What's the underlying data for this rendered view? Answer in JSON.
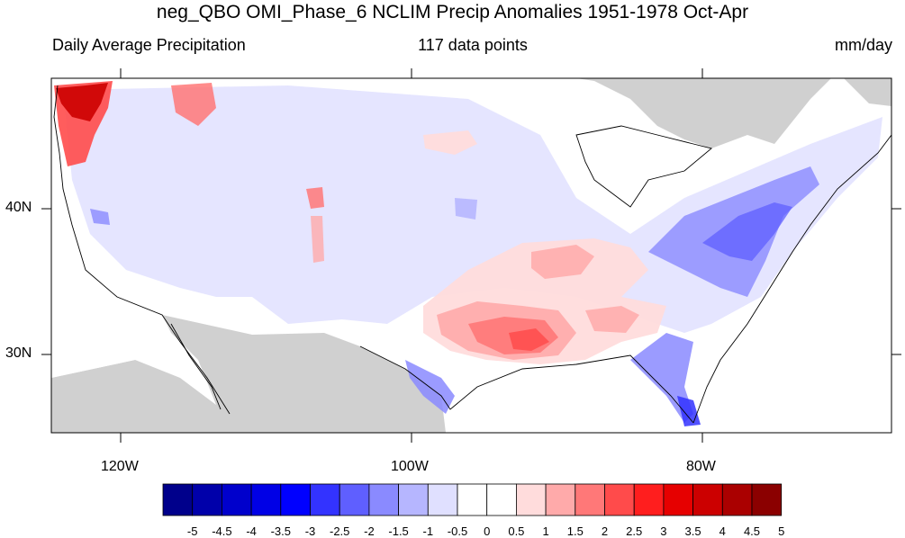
{
  "title": "neg_QBO OMI_Phase_6 NCLIM Precip Anomalies 1951-1978 Oct-Apr",
  "subtitle_left": "Daily Average Precipitation",
  "subtitle_center": "117 data points",
  "subtitle_right": "mm/day",
  "lat_labels": [
    "40N",
    "30N"
  ],
  "lon_labels": [
    "120W",
    "100W",
    "80W"
  ],
  "colorbar": {
    "labels": [
      "-5",
      "-4.5",
      "-4",
      "-3.5",
      "-3",
      "-2.5",
      "-2",
      "-1.5",
      "-1",
      "-0.5",
      "0",
      "0.5",
      "1",
      "1.5",
      "2",
      "2.5",
      "3",
      "3.5",
      "4",
      "4.5",
      "5"
    ],
    "colors": [
      "#00008b",
      "#0000aa",
      "#0000cc",
      "#0000e6",
      "#0000ff",
      "#3333ff",
      "#5f5fff",
      "#8a8aff",
      "#b6b6ff",
      "#e0e0ff",
      "#ffffff",
      "#ffffff",
      "#ffdcdc",
      "#ffaaaa",
      "#ff7878",
      "#ff4b4b",
      "#ff1e1e",
      "#e60000",
      "#cc0000",
      "#aa0000",
      "#8b0000"
    ]
  },
  "colors": {
    "land_outside": "#d0d0d0",
    "ocean": "#ffffff"
  }
}
